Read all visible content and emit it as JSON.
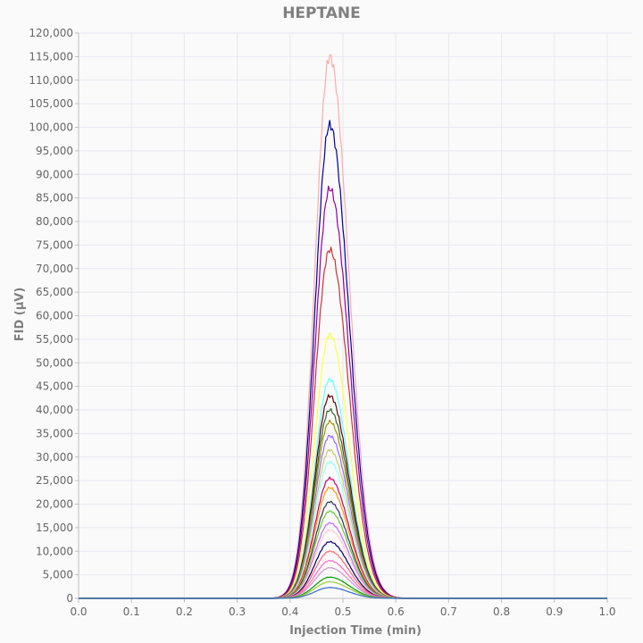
{
  "chart_data": {
    "type": "line",
    "title": "HEPTANE",
    "xlabel": "Injection Time (min)",
    "ylabel": "FID (µV)",
    "xlim": [
      0.0,
      1.0
    ],
    "ylim": [
      0,
      120000
    ],
    "grid": true,
    "x_ticks": [
      "0.0",
      "0.1",
      "0.2",
      "0.3",
      "0.4",
      "0.5",
      "0.6",
      "0.7",
      "0.8",
      "0.9",
      "1.0"
    ],
    "y_ticks": [
      "0",
      "5,000",
      "10,000",
      "15,000",
      "20,000",
      "25,000",
      "30,000",
      "35,000",
      "40,000",
      "45,000",
      "50,000",
      "55,000",
      "60,000",
      "65,000",
      "70,000",
      "75,000",
      "80,000",
      "85,000",
      "90,000",
      "95,000",
      "100,000",
      "105,000",
      "110,000",
      "115,000",
      "120,000"
    ],
    "peak_x": 0.475,
    "series": [
      {
        "color": "#ffaaaa",
        "peak": 115000
      },
      {
        "color": "#000099",
        "peak": 100500
      },
      {
        "color": "#990099",
        "peak": 87000
      },
      {
        "color": "#cc3333",
        "peak": 74000
      },
      {
        "color": "#ffff44",
        "peak": 56000
      },
      {
        "color": "#66ffff",
        "peak": 46500
      },
      {
        "color": "#660000",
        "peak": 43000
      },
      {
        "color": "#336633",
        "peak": 40000
      },
      {
        "color": "#999900",
        "peak": 37500
      },
      {
        "color": "#9966ff",
        "peak": 34500
      },
      {
        "color": "#cccc66",
        "peak": 31500
      },
      {
        "color": "#99ffff",
        "peak": 29000
      },
      {
        "color": "#cc0066",
        "peak": 25500
      },
      {
        "color": "#ff9900",
        "peak": 23500
      },
      {
        "color": "#333366",
        "peak": 20500
      },
      {
        "color": "#66cc33",
        "peak": 18500
      },
      {
        "color": "#cc66ff",
        "peak": 16000
      },
      {
        "color": "#ffcccc",
        "peak": 14500
      },
      {
        "color": "#000066",
        "peak": 12000
      },
      {
        "color": "#ff6666",
        "peak": 10000
      },
      {
        "color": "#ff66cc",
        "peak": 8000
      },
      {
        "color": "#cc99cc",
        "peak": 6500
      },
      {
        "color": "#009900",
        "peak": 4500
      },
      {
        "color": "#99cc33",
        "peak": 3500
      },
      {
        "color": "#3366cc",
        "peak": 2300
      }
    ]
  }
}
